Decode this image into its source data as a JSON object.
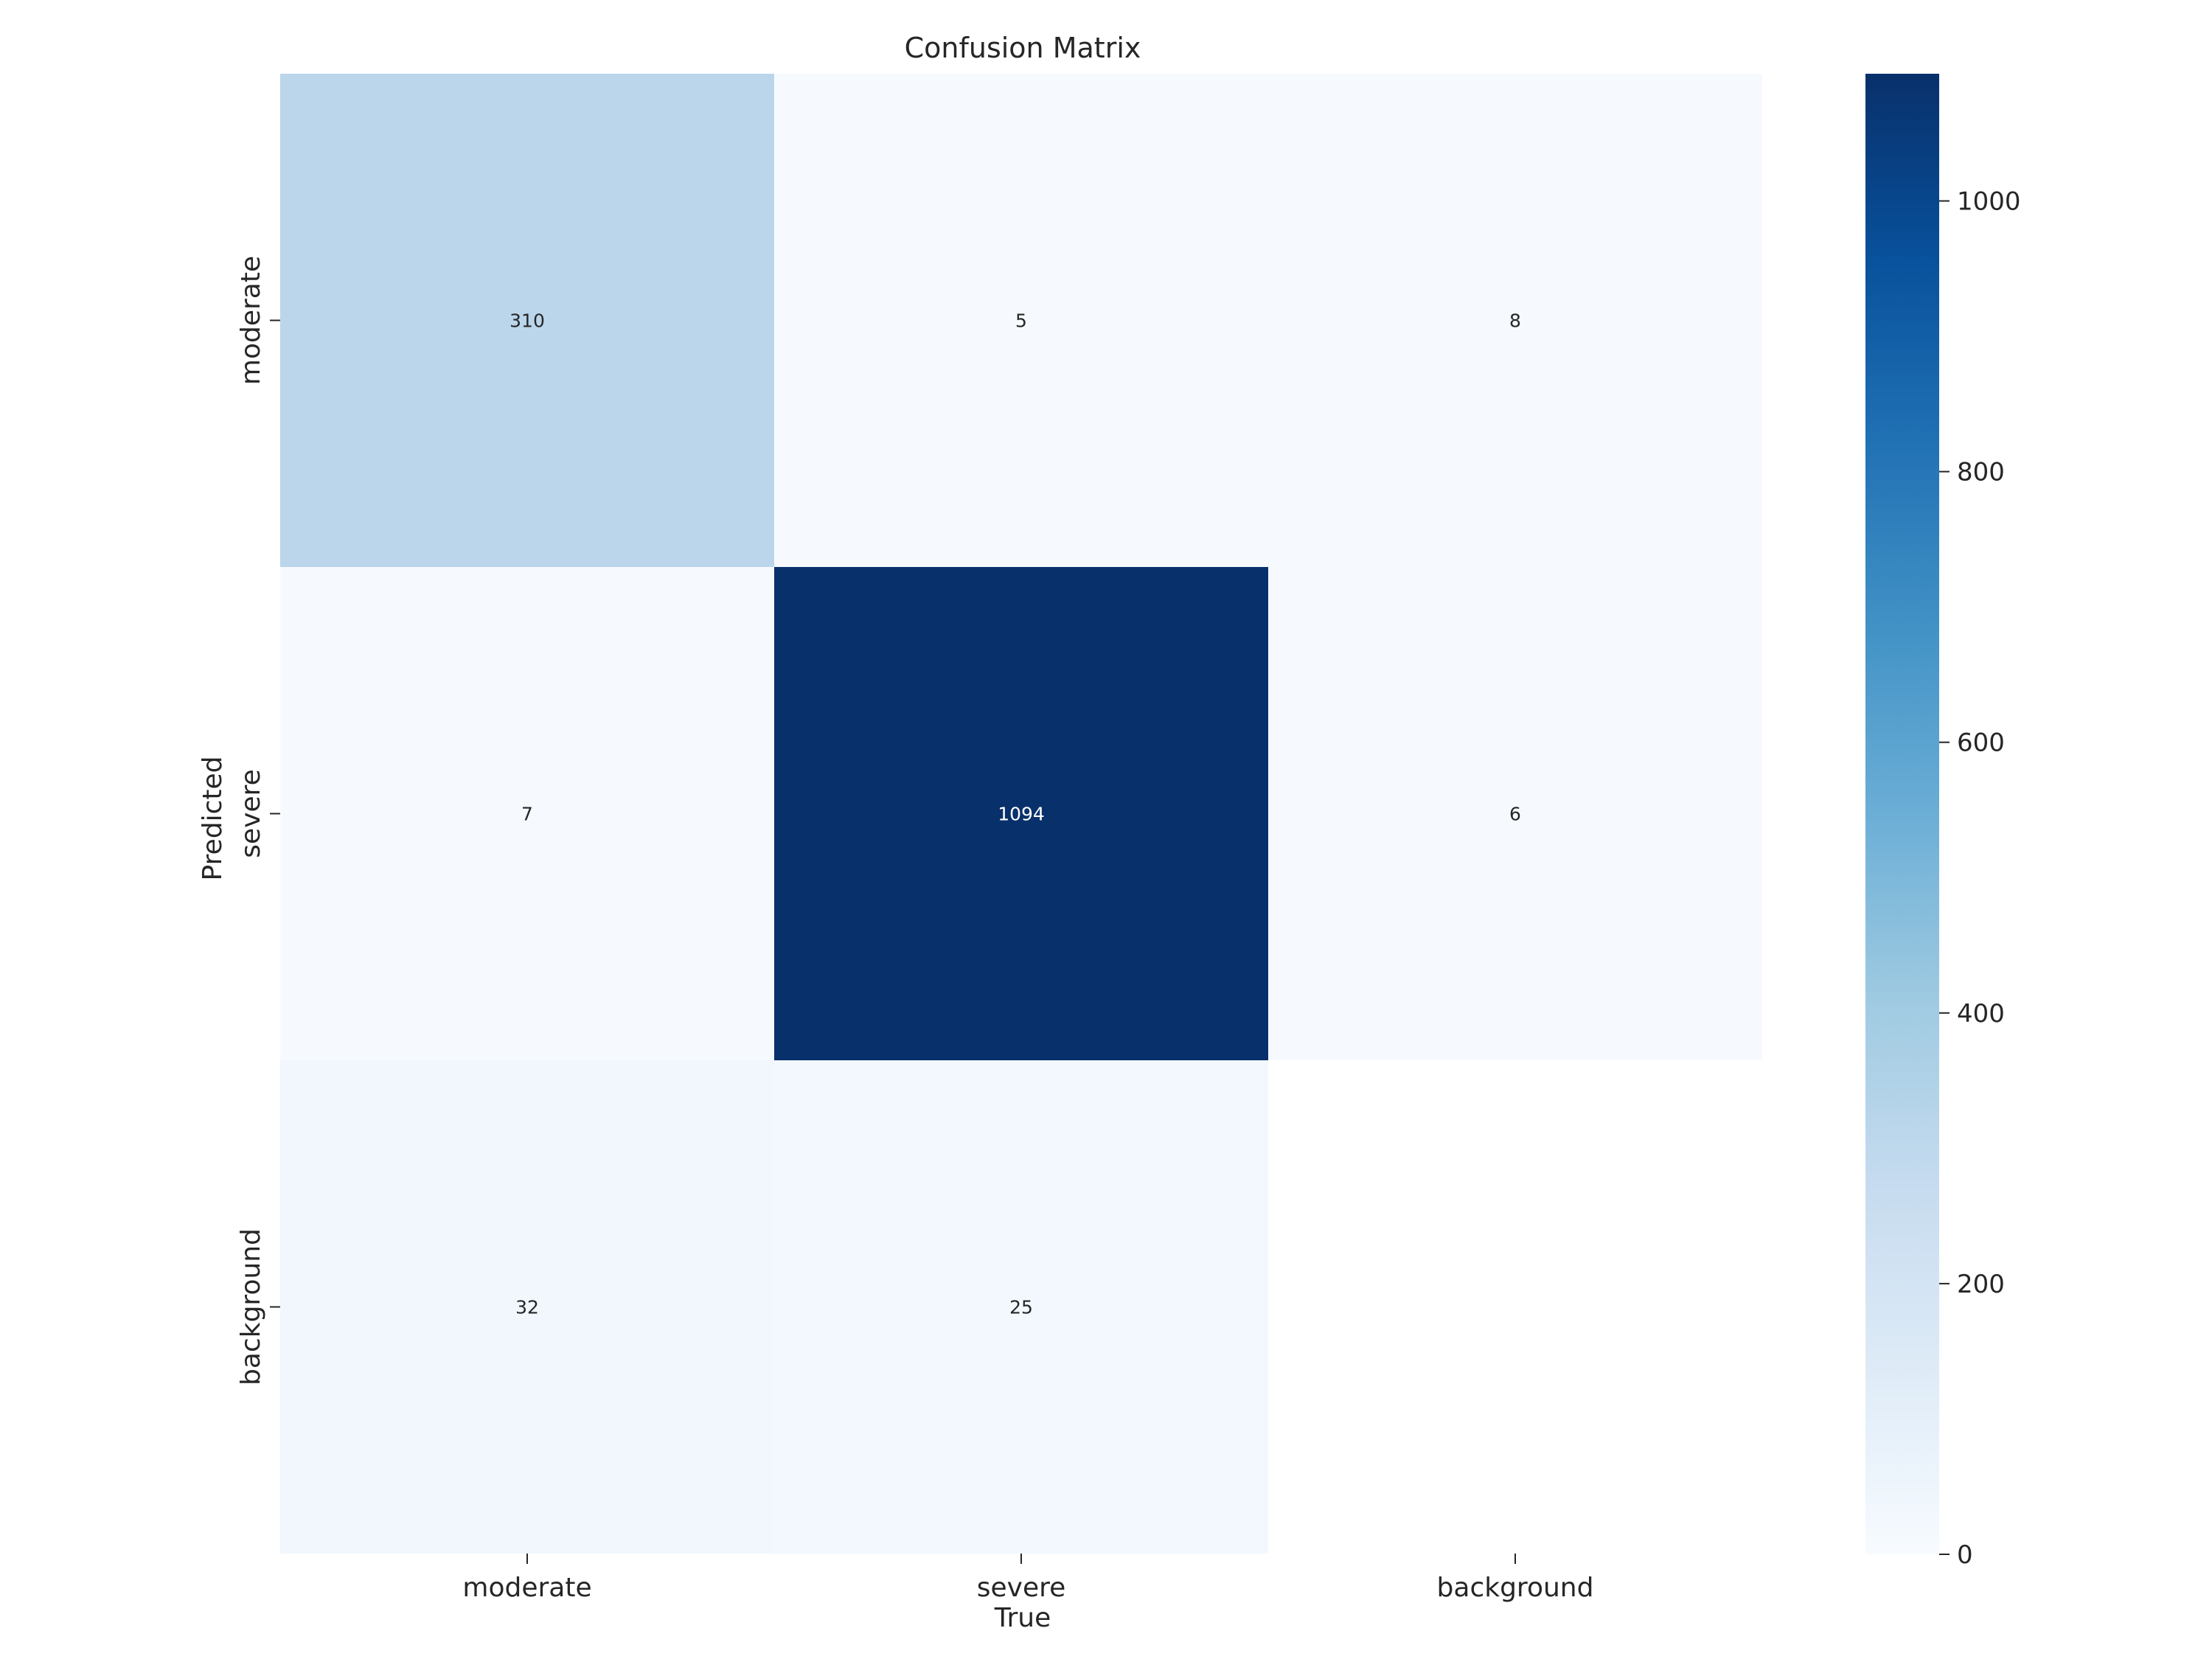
{
  "chart_data": {
    "type": "heatmap",
    "title": "Confusion Matrix",
    "xlabel": "True",
    "ylabel": "Predicted",
    "x_categories": [
      "moderate",
      "severe",
      "background"
    ],
    "y_categories": [
      "moderate",
      "severe",
      "background"
    ],
    "matrix": [
      [
        310,
        5,
        8
      ],
      [
        7,
        1094,
        6
      ],
      [
        32,
        25,
        null
      ]
    ],
    "colormap": "Blues",
    "colorbar": {
      "range": [
        0,
        1094
      ],
      "ticks": [
        0,
        200,
        400,
        600,
        800,
        1000
      ]
    },
    "colors": {
      "scale": [
        "#f7fbff",
        "#deebf7",
        "#c6dbef",
        "#9ecae1",
        "#6baed6",
        "#4292c6",
        "#2171b5",
        "#08519c",
        "#08306b"
      ],
      "empty_cell": "#ffffff",
      "text_dark": "#262626",
      "text_light": "#ffffff"
    }
  }
}
